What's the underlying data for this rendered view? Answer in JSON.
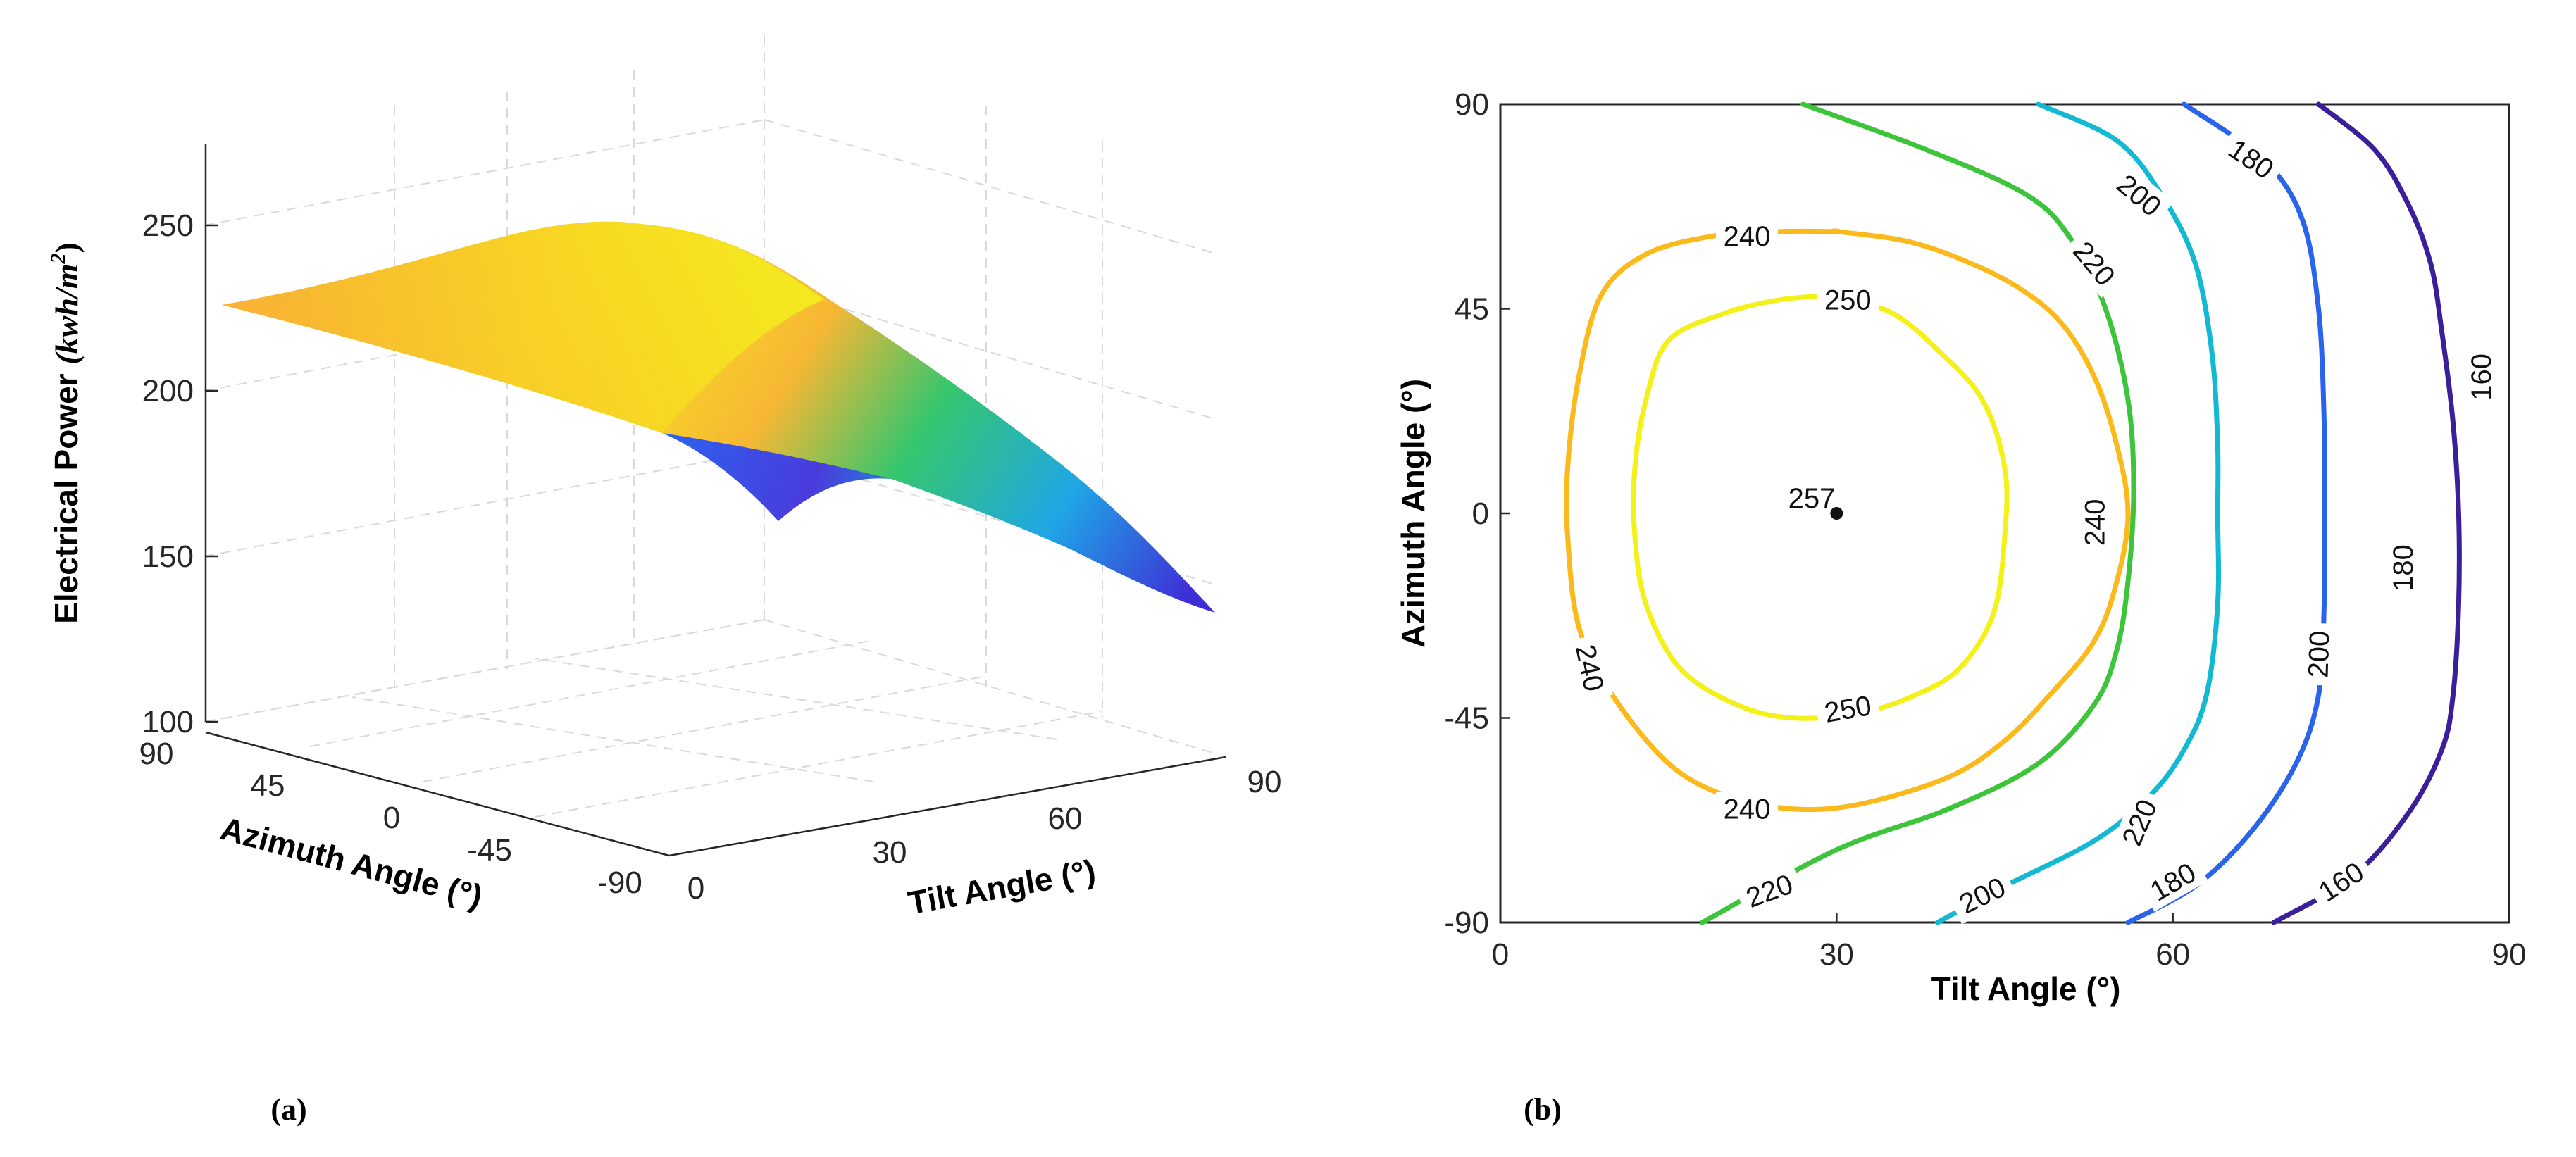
{
  "chart_data": [
    {
      "panel": "(a)",
      "type": "surface",
      "zlabel": "Electrical Power (kwh/m²)",
      "zlabel_parts": {
        "main": "Electrical Power ",
        "math": "(kwh/m",
        "sup": "2",
        "close": ")"
      },
      "xlabel": "Tilt Angle (°)",
      "ylabel": "Azimuth Angle (°)",
      "xlim": [
        0,
        90
      ],
      "ylim": [
        -90,
        90
      ],
      "zlim": [
        100,
        275
      ],
      "x_ticks": [
        "0",
        "30",
        "60",
        "90"
      ],
      "y_ticks": [
        "90",
        "45",
        "0",
        "-45",
        "-90"
      ],
      "z_ticks": [
        "100",
        "150",
        "200",
        "250"
      ],
      "colormap": "parula",
      "max_value": 257,
      "max_at": {
        "tilt": 30,
        "azimuth": 0
      }
    },
    {
      "panel": "(b)",
      "type": "contour",
      "xlabel": "Tilt Angle (°)",
      "ylabel": "Azimuth Angle (°)",
      "xlim": [
        0,
        90
      ],
      "ylim": [
        -90,
        90
      ],
      "x_ticks": [
        "0",
        "30",
        "60",
        "90"
      ],
      "y_ticks": [
        "90",
        "45",
        "0",
        "-45",
        "-90"
      ],
      "levels": [
        160,
        180,
        200,
        220,
        240,
        250
      ],
      "level_labels": [
        "160",
        "180",
        "200",
        "220",
        "240",
        "250"
      ],
      "level_colors": [
        "#3b1f9a",
        "#2b64ec",
        "#13b8d2",
        "#3cc43a",
        "#fbb91c",
        "#f4f01a"
      ],
      "max_point": {
        "tilt": 30,
        "azimuth": 0,
        "value": 257,
        "label": "257"
      }
    }
  ],
  "panel_labels": {
    "a": "(a)",
    "b": "(b)"
  }
}
